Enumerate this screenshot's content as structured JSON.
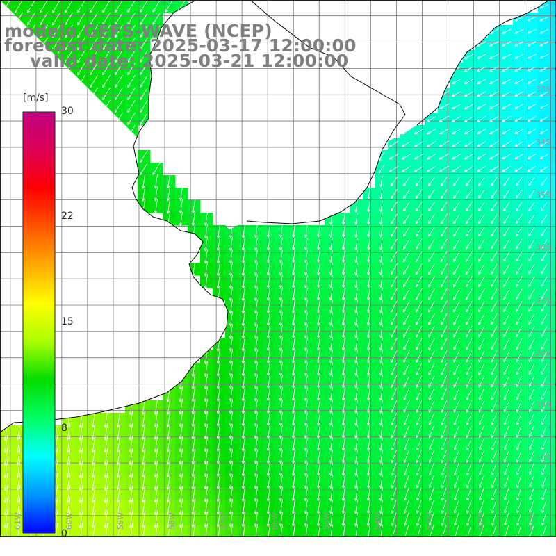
{
  "title": {
    "line1": "modelo GEFS-WAVE (NCEP)",
    "line2": "forecast date: 2025-03-17 12:00:00",
    "line3": "valid date: 2025-03-21 12:00:00"
  },
  "colorbar": {
    "unit": "[m/s]",
    "ticks": [
      {
        "label": "30",
        "value": 30
      },
      {
        "label": "22",
        "value": 22
      },
      {
        "label": "15",
        "value": 15
      },
      {
        "label": "8",
        "value": 8
      },
      {
        "label": "0",
        "value": 0
      }
    ],
    "min": 0,
    "max": 30,
    "colors": [
      "#0000ff",
      "#0096ff",
      "#00ffff",
      "#00ff64",
      "#00dd00",
      "#aaff00",
      "#ffff00",
      "#ffaa00",
      "#ff5500",
      "#ff0000",
      "#dd0055",
      "#c00080"
    ]
  },
  "map": {
    "lat_labels": [
      {
        "label": "33S",
        "lat": -33
      },
      {
        "label": "34S",
        "lat": -34
      },
      {
        "label": "35S",
        "lat": -35
      },
      {
        "label": "36S",
        "lat": -36
      },
      {
        "label": "37S",
        "lat": -37
      },
      {
        "label": "38S",
        "lat": -38
      },
      {
        "label": "39S",
        "lat": -39
      },
      {
        "label": "40S",
        "lat": -40
      }
    ],
    "lon_labels": [
      {
        "label": "61W",
        "lon": -61
      },
      {
        "label": "60W",
        "lon": -60
      },
      {
        "label": "59W",
        "lon": -59
      },
      {
        "label": "58W",
        "lon": -58
      },
      {
        "label": "57W",
        "lon": -57
      },
      {
        "label": "56W",
        "lon": -56
      },
      {
        "label": "55W",
        "lon": -55
      },
      {
        "label": "54W",
        "lon": -54
      },
      {
        "label": "53W",
        "lon": -53
      },
      {
        "label": "52W",
        "lon": -52
      },
      {
        "label": "51W",
        "lon": -51
      }
    ],
    "lon_range": [
      -61.2,
      -50.4
    ],
    "lat_range": [
      -41.4,
      -31.2
    ],
    "land_color": "#ffffff",
    "grid_color": "#777777",
    "coast_color": "#000000",
    "arrow_color": "#ffffff"
  }
}
